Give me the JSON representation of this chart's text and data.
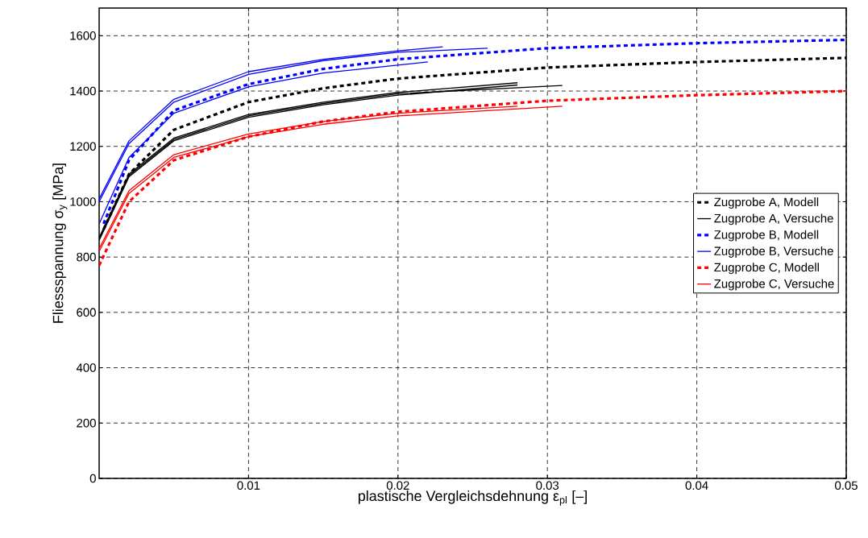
{
  "chart_data": {
    "type": "line",
    "xlabel": "plastische Vergleichsdehnung ε$_{pl}$ [–]",
    "ylabel": "Fliessspannung σ$_{y}$ [MPa]",
    "xlim": [
      0,
      0.05
    ],
    "ylim": [
      0,
      1700
    ],
    "xticks": [
      0.01,
      0.02,
      0.03,
      0.04,
      0.05
    ],
    "yticks": [
      0,
      200,
      400,
      600,
      800,
      1000,
      1200,
      1400,
      1600
    ],
    "grid": true,
    "legend": "right",
    "series": [
      {
        "name": "Zugprobe A, Modell",
        "color": "#000000",
        "line_style": "dashed",
        "x": [
          0.0003,
          0.002,
          0.005,
          0.01,
          0.015,
          0.02,
          0.03,
          0.04,
          0.05
        ],
        "values": [
          900,
          1100,
          1260,
          1360,
          1410,
          1445,
          1485,
          1505,
          1520
        ]
      },
      {
        "name": "Zugprobe A, Versuche",
        "color": "#000000",
        "line_style": "solid",
        "x": [
          0,
          0.002,
          0.005,
          0.01,
          0.015,
          0.02,
          0.028
        ],
        "values": [
          870,
          1100,
          1230,
          1315,
          1360,
          1395,
          1430
        ]
      },
      {
        "color": "#000000",
        "line_style": "solid",
        "x": [
          0,
          0.002,
          0.005,
          0.01,
          0.015,
          0.02,
          0.028
        ],
        "values": [
          860,
          1090,
          1220,
          1305,
          1350,
          1385,
          1422
        ]
      },
      {
        "color": "#000000",
        "line_style": "solid",
        "x": [
          0,
          0.002,
          0.005,
          0.01,
          0.015,
          0.02,
          0.031
        ],
        "values": [
          865,
          1095,
          1225,
          1310,
          1355,
          1390,
          1420
        ]
      },
      {
        "name": "Zugprobe B, Modell",
        "color": "#0000ff",
        "line_style": "dashed",
        "x": [
          0.0003,
          0.002,
          0.005,
          0.01,
          0.015,
          0.02,
          0.03,
          0.04,
          0.05
        ],
        "values": [
          920,
          1150,
          1330,
          1425,
          1480,
          1515,
          1555,
          1573,
          1585
        ]
      },
      {
        "name": "Zugprobe B, Versuche",
        "color": "#0000ff",
        "line_style": "solid",
        "x": [
          0,
          0.002,
          0.005,
          0.01,
          0.015,
          0.02,
          0.023
        ],
        "values": [
          1010,
          1220,
          1370,
          1470,
          1515,
          1545,
          1560
        ]
      },
      {
        "color": "#0000ff",
        "line_style": "solid",
        "x": [
          0,
          0.002,
          0.005,
          0.01,
          0.015,
          0.02,
          0.026
        ],
        "values": [
          1000,
          1210,
          1360,
          1460,
          1510,
          1540,
          1555
        ]
      },
      {
        "color": "#0000ff",
        "line_style": "solid",
        "x": [
          0,
          0.002,
          0.005,
          0.01,
          0.015,
          0.022
        ],
        "values": [
          920,
          1160,
          1320,
          1415,
          1465,
          1505
        ]
      },
      {
        "name": "Zugprobe C, Modell",
        "color": "#ff0000",
        "line_style": "dashed",
        "x": [
          0,
          0.002,
          0.005,
          0.01,
          0.015,
          0.02,
          0.03,
          0.04,
          0.05
        ],
        "values": [
          770,
          1000,
          1150,
          1235,
          1290,
          1325,
          1365,
          1385,
          1400
        ]
      },
      {
        "name": "Zugprobe C, Versuche",
        "color": "#ff0000",
        "line_style": "solid",
        "x": [
          0,
          0.002,
          0.005,
          0.01,
          0.015,
          0.02,
          0.028
        ],
        "values": [
          830,
          1040,
          1170,
          1245,
          1290,
          1320,
          1345
        ]
      },
      {
        "color": "#ff0000",
        "line_style": "solid",
        "x": [
          0,
          0.002,
          0.005,
          0.01,
          0.015,
          0.02,
          0.031
        ],
        "values": [
          820,
          1030,
          1160,
          1235,
          1280,
          1310,
          1345
        ]
      }
    ]
  }
}
